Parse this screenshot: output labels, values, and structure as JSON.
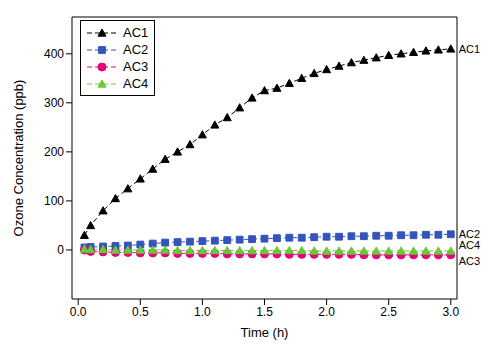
{
  "chart_data": {
    "type": "line",
    "x_label": "Time (h)",
    "y_label": "Ozone Concentration (ppb)",
    "xlim": [
      -0.05,
      3.05
    ],
    "xticks": [
      {
        "value": 0,
        "label": "0.0"
      },
      {
        "value": 0.5,
        "label": "0.5"
      },
      {
        "value": 1,
        "label": "1.0"
      },
      {
        "value": 1.5,
        "label": "1.5"
      },
      {
        "value": 2,
        "label": "2.0"
      },
      {
        "value": 2.5,
        "label": "2.5"
      },
      {
        "value": 3,
        "label": "3.0"
      }
    ],
    "ylim": [
      -100,
      475
    ],
    "yticks": [
      0,
      100,
      200,
      300,
      400
    ],
    "legend": "upper left",
    "x": [
      0.05,
      0.1,
      0.2,
      0.3,
      0.4,
      0.5,
      0.6,
      0.7,
      0.8,
      0.9,
      1.0,
      1.1,
      1.2,
      1.3,
      1.4,
      1.5,
      1.6,
      1.7,
      1.8,
      1.9,
      2.0,
      2.1,
      2.2,
      2.3,
      2.4,
      2.5,
      2.6,
      2.7,
      2.8,
      2.9,
      3.0
    ],
    "series": [
      {
        "name": "AC1",
        "color": "#000000",
        "marker": "triangle",
        "line_style": "dashed",
        "values": [
          30,
          50,
          80,
          105,
          125,
          145,
          165,
          185,
          200,
          215,
          235,
          255,
          270,
          290,
          310,
          325,
          330,
          340,
          350,
          360,
          368,
          375,
          382,
          387,
          392,
          397,
          400,
          403,
          406,
          408,
          410
        ]
      },
      {
        "name": "AC2",
        "color": "#3355bb",
        "marker": "square",
        "line_style": "dashed",
        "values": [
          5,
          6,
          7,
          8,
          9,
          11,
          13,
          15,
          16,
          17,
          18,
          19,
          20,
          21,
          22,
          23,
          24,
          25,
          25,
          26,
          27,
          27,
          28,
          28,
          29,
          29,
          30,
          30,
          31,
          31,
          32
        ]
      },
      {
        "name": "AC3",
        "color": "#e6007e",
        "marker": "circle",
        "line_style": "dashed",
        "values": [
          0,
          -3,
          -4,
          -5,
          -5,
          -6,
          -6,
          -6,
          -7,
          -7,
          -7,
          -7,
          -8,
          -8,
          -8,
          -8,
          -8,
          -9,
          -9,
          -9,
          -9,
          -9,
          -9,
          -10,
          -10,
          -10,
          -10,
          -10,
          -10,
          -10,
          -10
        ]
      },
      {
        "name": "AC4",
        "color": "#66cc33",
        "marker": "triangle",
        "line_style": "dashed",
        "values": [
          2,
          1,
          1,
          0,
          0,
          0,
          0,
          0,
          -1,
          -1,
          -1,
          -1,
          -1,
          -1,
          -1,
          -1,
          -1,
          -1,
          -1,
          -2,
          -2,
          -2,
          -2,
          -2,
          -2,
          -2,
          -2,
          -2,
          -2,
          -2,
          -2
        ]
      }
    ]
  }
}
